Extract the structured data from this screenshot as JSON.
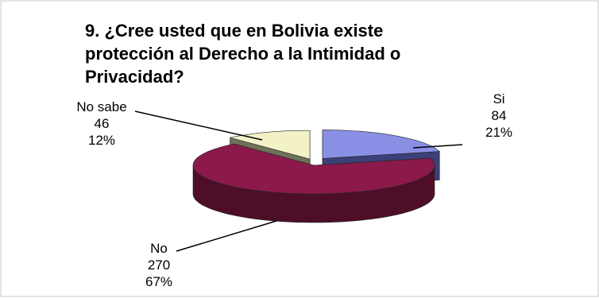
{
  "chart_data": {
    "type": "pie",
    "title_lines": [
      "9. ¿Cree usted que en Bolivia existe",
      "protección al Derecho a la Intimidad o",
      "Privacidad?"
    ],
    "slices": [
      {
        "label": "Si",
        "value": 84,
        "percent": "21%",
        "value_text": "84",
        "color": "#8a8fe6",
        "side_color": "#3c4078"
      },
      {
        "label": "No",
        "value": 270,
        "percent": "67%",
        "value_text": "270",
        "color": "#8b1a4a",
        "side_color": "#4e0e28"
      },
      {
        "label": "No sabe",
        "value": 46,
        "percent": "12%",
        "value_text": "46",
        "color": "#f3f2c6",
        "side_color": "#6d7258"
      }
    ],
    "legend": "none",
    "three_d": true,
    "exploded": true
  }
}
